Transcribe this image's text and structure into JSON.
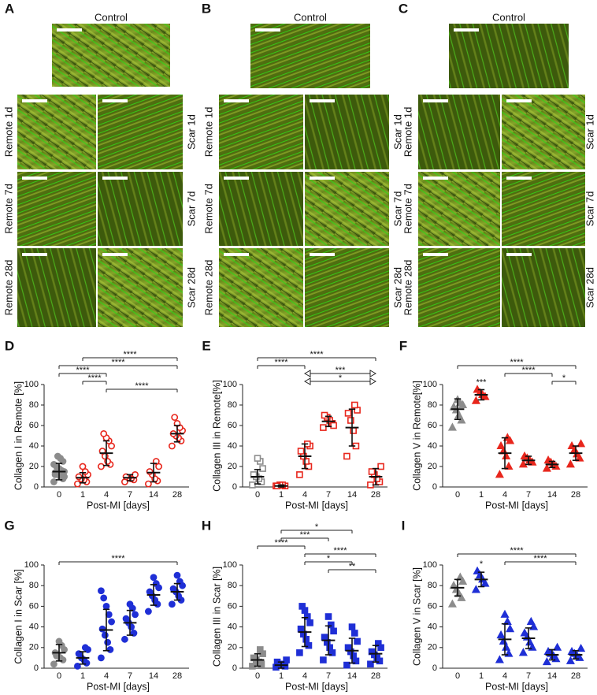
{
  "micrographs": [
    {
      "panel": "A",
      "control_label": "Control",
      "rows": [
        {
          "left": "Remote 1d",
          "right": "Scar 1d"
        },
        {
          "left": "Remote 7d",
          "right": "Scar 7d"
        },
        {
          "left": "Remote 28d",
          "right": "Scar 28d"
        }
      ]
    },
    {
      "panel": "B",
      "control_label": "Control",
      "rows": [
        {
          "left": "Remote 1d",
          "right": "Scar 1d"
        },
        {
          "left": "Remote 7d",
          "right": "Scar 7d"
        },
        {
          "left": "Remote 28d",
          "right": "Scar 28d"
        }
      ]
    },
    {
      "panel": "C",
      "control_label": "Control",
      "rows": [
        {
          "left": "Remote 1d",
          "right": "Scar 1d"
        },
        {
          "left": "Remote 7d",
          "right": "Scar 7d"
        },
        {
          "left": "Remote 28d",
          "right": "Scar 28d"
        }
      ]
    }
  ],
  "chart_data": [
    {
      "type": "dotplot",
      "panel": "D",
      "ylabel": "Collagen I in Remote [%]",
      "xlabel": "Post-MI [days]",
      "categories": [
        "0",
        "1",
        "4",
        "7",
        "14",
        "28"
      ],
      "ylim": [
        0,
        100
      ],
      "yticks": [
        0,
        20,
        40,
        60,
        80,
        100
      ],
      "groups": [
        {
          "color": "#8c8c8c",
          "marker": "circle",
          "filled": true,
          "mean": 15,
          "sd": 8,
          "points": [
            5,
            8,
            10,
            12,
            14,
            15,
            16,
            18,
            20,
            22,
            25,
            28,
            30,
            12,
            10
          ]
        },
        {
          "color": "#e8261c",
          "marker": "circle",
          "filled": false,
          "mean": 9,
          "sd": 5,
          "points": [
            3,
            5,
            7,
            8,
            10,
            12,
            15,
            20
          ]
        },
        {
          "color": "#e8261c",
          "marker": "circle",
          "filled": false,
          "mean": 33,
          "sd": 12,
          "points": [
            20,
            22,
            25,
            30,
            35,
            40,
            45,
            48,
            52
          ]
        },
        {
          "color": "#e8261c",
          "marker": "circle",
          "filled": false,
          "mean": 9,
          "sd": 3,
          "points": [
            5,
            7,
            8,
            9,
            10,
            12
          ]
        },
        {
          "color": "#e8261c",
          "marker": "circle",
          "filled": false,
          "mean": 14,
          "sd": 9,
          "points": [
            3,
            6,
            8,
            12,
            15,
            20,
            25
          ]
        },
        {
          "color": "#e8261c",
          "marker": "circle",
          "filled": false,
          "mean": 52,
          "sd": 8,
          "points": [
            40,
            45,
            48,
            50,
            52,
            55,
            58,
            62,
            68
          ]
        }
      ],
      "brackets": [
        {
          "from": "1",
          "to": "28",
          "label": "****"
        },
        {
          "from": "0",
          "to": "28",
          "label": "****"
        },
        {
          "from": "0",
          "to": "4",
          "label": "****"
        },
        {
          "from": "1",
          "to": "4",
          "label": "****"
        },
        {
          "from": "4",
          "to": "28",
          "label": "****"
        }
      ]
    },
    {
      "type": "dotplot",
      "panel": "E",
      "ylabel": "Collagen III in Remote[%]",
      "xlabel": "Post-MI [days]",
      "categories": [
        "0",
        "1",
        "4",
        "7",
        "14",
        "28"
      ],
      "ylim": [
        0,
        100
      ],
      "yticks": [
        0,
        20,
        40,
        60,
        80,
        100
      ],
      "groups": [
        {
          "color": "#8c8c8c",
          "marker": "square",
          "filled": false,
          "mean": 10,
          "sd": 7,
          "points": [
            2,
            5,
            8,
            10,
            12,
            18,
            25,
            28
          ]
        },
        {
          "color": "#e8261c",
          "marker": "square",
          "filled": false,
          "mean": 1,
          "sd": 1,
          "points": [
            1,
            1,
            2,
            2,
            1
          ]
        },
        {
          "color": "#e8261c",
          "marker": "square",
          "filled": false,
          "mean": 30,
          "sd": 12,
          "points": [
            12,
            20,
            25,
            30,
            35,
            40,
            42
          ]
        },
        {
          "color": "#e8261c",
          "marker": "square",
          "filled": false,
          "mean": 64,
          "sd": 5,
          "points": [
            58,
            62,
            65,
            68,
            70,
            60
          ]
        },
        {
          "color": "#e8261c",
          "marker": "square",
          "filled": false,
          "mean": 58,
          "sd": 18,
          "points": [
            30,
            40,
            55,
            65,
            72,
            75,
            80
          ]
        },
        {
          "color": "#e8261c",
          "marker": "square",
          "filled": false,
          "mean": 10,
          "sd": 8,
          "points": [
            2,
            5,
            8,
            12,
            15,
            20
          ]
        }
      ],
      "brackets": [
        {
          "from": "0",
          "to": "28",
          "label": "****"
        },
        {
          "from": "0",
          "to": "4",
          "label": "****"
        },
        {
          "from": "4",
          "to": "28",
          "label": "***",
          "arrow": true
        },
        {
          "from": "4",
          "to": "28",
          "label": "*",
          "arrow": true
        }
      ]
    },
    {
      "type": "dotplot",
      "panel": "F",
      "ylabel": "Collagen V in Remote[%]",
      "xlabel": "Post-MI [days]",
      "categories": [
        "0",
        "1",
        "4",
        "7",
        "14",
        "28"
      ],
      "ylim": [
        0,
        100
      ],
      "yticks": [
        0,
        20,
        40,
        60,
        80,
        100
      ],
      "groups": [
        {
          "color": "#8c8c8c",
          "marker": "triangle",
          "filled": true,
          "mean": 76,
          "sd": 10,
          "points": [
            58,
            65,
            70,
            75,
            78,
            80,
            82,
            85
          ]
        },
        {
          "color": "#e8261c",
          "marker": "triangle",
          "filled": true,
          "mean": 90,
          "sd": 5,
          "points": [
            84,
            88,
            90,
            92,
            95
          ]
        },
        {
          "color": "#e8261c",
          "marker": "triangle",
          "filled": true,
          "mean": 33,
          "sd": 15,
          "points": [
            12,
            20,
            30,
            35,
            40,
            45,
            48
          ]
        },
        {
          "color": "#e8261c",
          "marker": "triangle",
          "filled": true,
          "mean": 26,
          "sd": 4,
          "points": [
            22,
            24,
            26,
            28,
            30
          ]
        },
        {
          "color": "#e8261c",
          "marker": "triangle",
          "filled": true,
          "mean": 22,
          "sd": 3,
          "points": [
            18,
            20,
            22,
            24,
            26
          ]
        },
        {
          "color": "#e8261c",
          "marker": "triangle",
          "filled": true,
          "mean": 33,
          "sd": 7,
          "points": [
            22,
            28,
            32,
            36,
            40,
            42
          ]
        }
      ],
      "annotations": [
        {
          "category": "1",
          "label": "***"
        }
      ],
      "brackets": [
        {
          "from": "0",
          "to": "28",
          "label": "****"
        },
        {
          "from": "4",
          "to": "14",
          "label": "****"
        },
        {
          "from": "14",
          "to": "28",
          "label": "*"
        }
      ]
    },
    {
      "type": "dotplot",
      "panel": "G",
      "ylabel": "Collagen I in Scar [%]",
      "xlabel": "Post-MI [days]",
      "categories": [
        "0",
        "1",
        "4",
        "7",
        "14",
        "28"
      ],
      "ylim": [
        0,
        100
      ],
      "yticks": [
        0,
        20,
        40,
        60,
        80,
        100
      ],
      "groups": [
        {
          "color": "#8c8c8c",
          "marker": "circle",
          "filled": true,
          "mean": 15,
          "sd": 8,
          "points": [
            4,
            8,
            10,
            13,
            15,
            18,
            22,
            26,
            12
          ]
        },
        {
          "color": "#1f2fd6",
          "marker": "circle",
          "filled": true,
          "mean": 10,
          "sd": 6,
          "points": [
            2,
            5,
            8,
            10,
            14,
            18,
            20
          ]
        },
        {
          "color": "#1f2fd6",
          "marker": "circle",
          "filled": true,
          "mean": 37,
          "sd": 20,
          "points": [
            10,
            18,
            25,
            32,
            38,
            45,
            52,
            60,
            68,
            75
          ]
        },
        {
          "color": "#1f2fd6",
          "marker": "circle",
          "filled": true,
          "mean": 44,
          "sd": 12,
          "points": [
            28,
            34,
            40,
            44,
            48,
            52,
            58,
            62
          ]
        },
        {
          "color": "#1f2fd6",
          "marker": "circle",
          "filled": true,
          "mean": 71,
          "sd": 10,
          "points": [
            55,
            62,
            66,
            70,
            74,
            78,
            82,
            88
          ]
        },
        {
          "color": "#1f2fd6",
          "marker": "circle",
          "filled": true,
          "mean": 74,
          "sd": 8,
          "points": [
            62,
            66,
            70,
            74,
            77,
            80,
            84,
            90
          ]
        }
      ],
      "brackets": [
        {
          "from": "0",
          "to": "28",
          "label": "****"
        }
      ]
    },
    {
      "type": "dotplot",
      "panel": "H",
      "ylabel": "Collagen III in Scar [%]",
      "xlabel": "Post-MI [days]",
      "categories": [
        "0",
        "1",
        "4",
        "7",
        "14",
        "28"
      ],
      "ylim": [
        0,
        100
      ],
      "yticks": [
        0,
        20,
        40,
        60,
        80,
        100
      ],
      "groups": [
        {
          "color": "#8c8c8c",
          "marker": "square",
          "filled": true,
          "mean": 8,
          "sd": 6,
          "points": [
            2,
            4,
            6,
            8,
            10,
            14,
            18
          ]
        },
        {
          "color": "#1f2fd6",
          "marker": "square",
          "filled": true,
          "mean": 3,
          "sd": 3,
          "points": [
            1,
            2,
            3,
            4,
            6,
            8
          ]
        },
        {
          "color": "#1f2fd6",
          "marker": "square",
          "filled": true,
          "mean": 35,
          "sd": 14,
          "points": [
            15,
            22,
            28,
            33,
            38,
            44,
            50,
            56,
            60
          ]
        },
        {
          "color": "#1f2fd6",
          "marker": "square",
          "filled": true,
          "mean": 27,
          "sd": 14,
          "points": [
            8,
            15,
            20,
            25,
            30,
            36,
            42,
            50
          ]
        },
        {
          "color": "#1f2fd6",
          "marker": "square",
          "filled": true,
          "mean": 17,
          "sd": 12,
          "points": [
            3,
            7,
            12,
            16,
            20,
            26,
            34,
            40
          ]
        },
        {
          "color": "#1f2fd6",
          "marker": "square",
          "filled": true,
          "mean": 14,
          "sd": 8,
          "points": [
            4,
            7,
            10,
            13,
            16,
            20,
            24
          ]
        }
      ],
      "brackets": [
        {
          "from": "1",
          "to": "14",
          "label": "*"
        },
        {
          "from": "1",
          "to": "7",
          "label": "***"
        },
        {
          "from": "0",
          "to": "4",
          "label": "****"
        },
        {
          "from": "4",
          "to": "28",
          "label": "****"
        },
        {
          "from": "4",
          "to": "14",
          "label": "*"
        },
        {
          "from": "7",
          "to": "28",
          "label": "**"
        }
      ]
    },
    {
      "type": "dotplot",
      "panel": "I",
      "ylabel": "Collagen V in Scar [%]",
      "xlabel": "Post-MI [days]",
      "categories": [
        "0",
        "1",
        "4",
        "7",
        "14",
        "28"
      ],
      "ylim": [
        0,
        100
      ],
      "yticks": [
        0,
        20,
        40,
        60,
        80,
        100
      ],
      "groups": [
        {
          "color": "#8c8c8c",
          "marker": "triangle",
          "filled": true,
          "mean": 78,
          "sd": 8,
          "points": [
            62,
            68,
            72,
            76,
            80,
            84,
            88
          ]
        },
        {
          "color": "#1f2fd6",
          "marker": "triangle",
          "filled": true,
          "mean": 86,
          "sd": 7,
          "points": [
            76,
            82,
            86,
            90,
            94
          ]
        },
        {
          "color": "#1f2fd6",
          "marker": "triangle",
          "filled": true,
          "mean": 28,
          "sd": 15,
          "points": [
            8,
            14,
            20,
            26,
            32,
            38,
            45,
            52
          ]
        },
        {
          "color": "#1f2fd6",
          "marker": "triangle",
          "filled": true,
          "mean": 29,
          "sd": 10,
          "points": [
            15,
            20,
            25,
            30,
            34,
            40,
            45
          ]
        },
        {
          "color": "#1f2fd6",
          "marker": "triangle",
          "filled": true,
          "mean": 13,
          "sd": 5,
          "points": [
            6,
            9,
            12,
            14,
            16,
            20
          ]
        },
        {
          "color": "#1f2fd6",
          "marker": "triangle",
          "filled": true,
          "mean": 13,
          "sd": 4,
          "points": [
            7,
            10,
            12,
            14,
            16,
            19
          ]
        }
      ],
      "annotations": [
        {
          "category": "1",
          "label": "*"
        }
      ],
      "brackets": [
        {
          "from": "0",
          "to": "28",
          "label": "****"
        },
        {
          "from": "4",
          "to": "28",
          "label": "****"
        }
      ]
    }
  ]
}
